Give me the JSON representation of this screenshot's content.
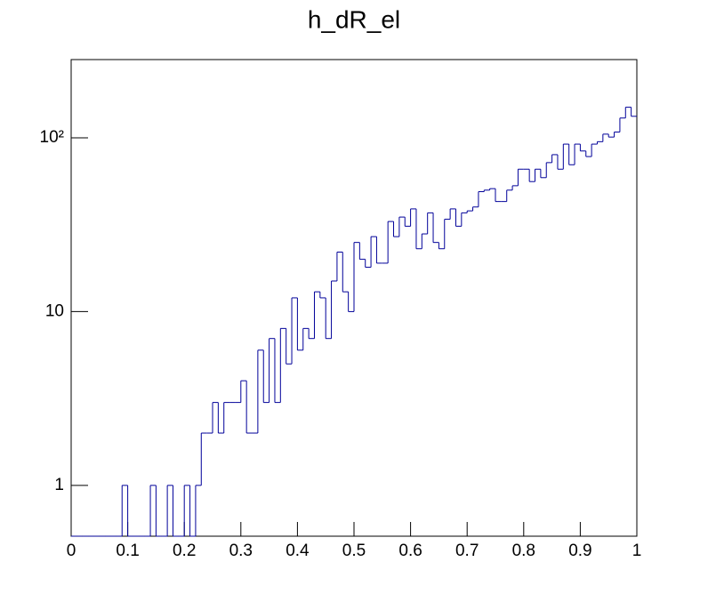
{
  "chart_data": {
    "type": "histogram",
    "title": "h_dR_el",
    "bins": [
      0,
      0.01,
      0.02,
      0.03,
      0.04,
      0.05,
      0.06,
      0.07,
      0.08,
      0.09,
      0.1,
      0.11,
      0.12,
      0.13,
      0.14,
      0.15,
      0.16,
      0.17,
      0.18,
      0.19,
      0.2,
      0.21,
      0.22,
      0.23,
      0.24,
      0.25,
      0.26,
      0.27,
      0.28,
      0.29,
      0.3,
      0.31,
      0.32,
      0.33,
      0.34,
      0.35,
      0.36,
      0.37,
      0.38,
      0.39,
      0.4,
      0.41,
      0.42,
      0.43,
      0.44,
      0.45,
      0.46,
      0.47,
      0.48,
      0.49,
      0.5,
      0.51,
      0.52,
      0.53,
      0.54,
      0.55,
      0.56,
      0.57,
      0.58,
      0.59,
      0.6,
      0.61,
      0.62,
      0.63,
      0.64,
      0.65,
      0.66,
      0.67,
      0.68,
      0.69,
      0.7,
      0.71,
      0.72,
      0.73,
      0.74,
      0.75,
      0.76,
      0.77,
      0.78,
      0.79,
      0.8,
      0.81,
      0.82,
      0.83,
      0.84,
      0.85,
      0.86,
      0.87,
      0.88,
      0.89,
      0.9,
      0.91,
      0.92,
      0.93,
      0.94,
      0.95,
      0.96,
      0.97,
      0.98,
      0.99,
      1
    ],
    "values": [
      0,
      0,
      0,
      0,
      0,
      0,
      0,
      0,
      0,
      1,
      0,
      0,
      0,
      0,
      1,
      0,
      0,
      1,
      0,
      0,
      1,
      0,
      1,
      2,
      2,
      3,
      2,
      3,
      3,
      3,
      4,
      2,
      2,
      6,
      3,
      7,
      3,
      8,
      5,
      12,
      6,
      8,
      7,
      13,
      12,
      7,
      15,
      22,
      13,
      10,
      25,
      20,
      18,
      27,
      19,
      19,
      33,
      27,
      35,
      31,
      39,
      23,
      28,
      37,
      25,
      23,
      34,
      39,
      31,
      37,
      38,
      40,
      49,
      50,
      51,
      43,
      43,
      50,
      53,
      66,
      66,
      56,
      66,
      59,
      72,
      80,
      66,
      92,
      70,
      92,
      84,
      78,
      92,
      95,
      105,
      101,
      108,
      130,
      150,
      133
    ],
    "color": "#000099",
    "log_y": true,
    "xlim": [
      0,
      1
    ],
    "xticks": [
      0,
      0.1,
      0.2,
      0.3,
      0.4,
      0.5,
      0.6,
      0.7,
      0.8,
      0.9,
      1
    ],
    "ylim": [
      0.51,
      282
    ],
    "yticks": [
      1,
      10,
      {
        "value": 100,
        "label": "10²"
      }
    ]
  }
}
